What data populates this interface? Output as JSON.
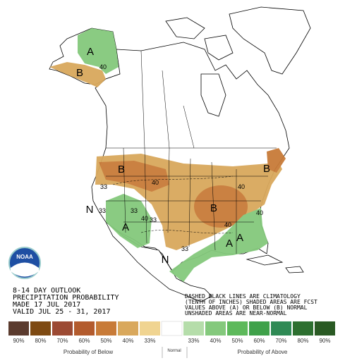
{
  "outlook": [
    "8-14 DAY OUTLOOK",
    "PRECIPITATION PROBABILITY",
    "MADE  17 JUL 2017",
    "VALID  JUL 25 - 31, 2017"
  ],
  "notes": [
    "DASHED BLACK LINES ARE CLIMATOLOGY",
    "(TENTH OF INCHES) SHADED AREAS ARE FCST",
    "VALUES ABOVE (A) OR BELOW (B) NORMAL",
    "UNSHADED AREAS ARE NEAR-NORMAL"
  ],
  "logo": "NOAA",
  "map_labels": [
    "A",
    "40",
    "B",
    "B",
    "40",
    "33",
    "B",
    "B",
    "40",
    "33",
    "A",
    "40",
    "33",
    "N",
    "N",
    "33",
    "40",
    "A",
    "A",
    "40",
    "33"
  ],
  "legend": {
    "labels": [
      "90%",
      "80%",
      "70%",
      "60%",
      "50%",
      "40%",
      "33%",
      "33%",
      "40%",
      "50%",
      "60%",
      "70%",
      "80%",
      "90%"
    ],
    "colors": [
      "#5b3b2e",
      "#7e4a12",
      "#9c4a33",
      "#b35b2d",
      "#c87b38",
      "#d9a85c",
      "#f0d491",
      "#b5ddaa",
      "#84c97c",
      "#5db95b",
      "#3fa14a",
      "#2f8a55",
      "#2d6f30",
      "#2a5a24"
    ],
    "normal_color": "#ffffff",
    "below": "Probability of Below",
    "normal": "Normal",
    "above": "Probability of Above"
  }
}
